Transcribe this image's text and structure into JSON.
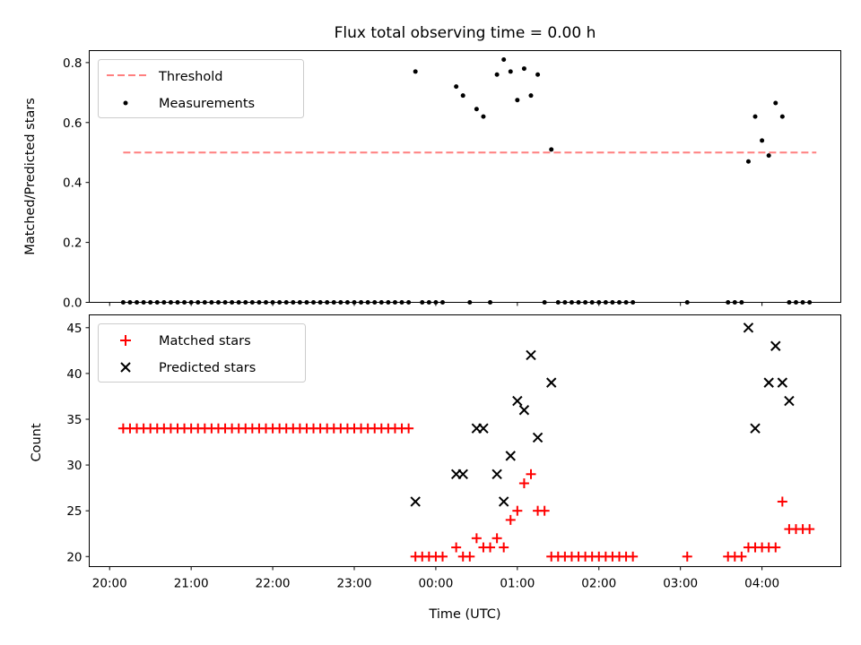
{
  "chart_data": [
    {
      "type": "scatter",
      "title": "Flux total observing time = 0.00 h",
      "xlabel": "",
      "ylabel": "Matched/Predicted stars",
      "ylim": [
        0,
        0.84
      ],
      "yticks": [
        "0.0",
        "0.2",
        "0.4",
        "0.6",
        "0.8"
      ],
      "ytick_values": [
        0,
        0.2,
        0.4,
        0.6,
        0.8
      ],
      "legend": {
        "placement": "upper left",
        "entries": [
          "Threshold",
          "Measurements"
        ]
      },
      "colors": {
        "threshold": "#ff7f7f",
        "measurements": "#000000"
      },
      "threshold": {
        "name": "Threshold",
        "value": 0.5,
        "x_start": "20:10",
        "x_end": "04:40"
      },
      "series": [
        {
          "name": "Measurements",
          "x": [
            "20:10",
            "20:15",
            "20:20",
            "20:25",
            "20:30",
            "20:35",
            "20:40",
            "20:45",
            "20:50",
            "20:55",
            "21:00",
            "21:05",
            "21:10",
            "21:15",
            "21:20",
            "21:25",
            "21:30",
            "21:35",
            "21:40",
            "21:45",
            "21:50",
            "21:55",
            "22:00",
            "22:05",
            "22:10",
            "22:15",
            "22:20",
            "22:25",
            "22:30",
            "22:35",
            "22:40",
            "22:45",
            "22:50",
            "22:55",
            "23:00",
            "23:05",
            "23:10",
            "23:15",
            "23:20",
            "23:25",
            "23:30",
            "23:35",
            "23:40",
            "23:45",
            "23:50",
            "23:55",
            "00:00",
            "00:05",
            "00:15",
            "00:20",
            "00:25",
            "00:30",
            "00:35",
            "00:40",
            "00:45",
            "00:50",
            "00:55",
            "01:00",
            "01:05",
            "01:10",
            "01:15",
            "01:20",
            "01:25",
            "01:30",
            "01:35",
            "01:40",
            "01:45",
            "01:50",
            "01:55",
            "02:00",
            "02:05",
            "02:10",
            "02:15",
            "02:20",
            "02:25",
            "03:05",
            "03:35",
            "03:40",
            "03:45",
            "03:50",
            "03:55",
            "04:00",
            "04:05",
            "04:10",
            "04:15",
            "04:20",
            "04:25",
            "04:30",
            "04:35"
          ],
          "y": [
            0,
            0,
            0,
            0,
            0,
            0,
            0,
            0,
            0,
            0,
            0,
            0,
            0,
            0,
            0,
            0,
            0,
            0,
            0,
            0,
            0,
            0,
            0,
            0,
            0,
            0,
            0,
            0,
            0,
            0,
            0,
            0,
            0,
            0,
            0,
            0,
            0,
            0,
            0,
            0,
            0,
            0,
            0,
            0.77,
            0,
            0,
            0,
            0,
            0.72,
            0.69,
            0,
            0.645,
            0.62,
            0,
            0.76,
            0.81,
            0.77,
            0.675,
            0.78,
            0.69,
            0.76,
            0,
            0.51,
            0,
            0,
            0,
            0,
            0,
            0,
            0,
            0,
            0,
            0,
            0,
            0,
            0,
            0,
            0,
            0,
            0.47,
            0.62,
            0.54,
            0.49,
            0.665,
            0.62,
            0,
            0,
            0,
            0
          ]
        }
      ]
    },
    {
      "type": "scatter",
      "title": "",
      "xlabel": "Time (UTC)",
      "ylabel": "Count",
      "ylim": [
        18.9,
        46.4
      ],
      "yticks": [
        "20",
        "25",
        "30",
        "35",
        "40",
        "45"
      ],
      "ytick_values": [
        20,
        25,
        30,
        35,
        40,
        45
      ],
      "xlim": [
        "19:45",
        "04:58"
      ],
      "xticks": [
        "20:00",
        "21:00",
        "22:00",
        "23:00",
        "00:00",
        "01:00",
        "02:00",
        "03:00",
        "04:00"
      ],
      "legend": {
        "placement": "upper left",
        "entries": [
          "Matched stars",
          "Predicted stars"
        ]
      },
      "colors": {
        "matched": "#ff0000",
        "predicted": "#000000"
      },
      "series": [
        {
          "name": "Matched stars",
          "marker": "plus",
          "x": [
            "20:10",
            "20:15",
            "20:20",
            "20:25",
            "20:30",
            "20:35",
            "20:40",
            "20:45",
            "20:50",
            "20:55",
            "21:00",
            "21:05",
            "21:10",
            "21:15",
            "21:20",
            "21:25",
            "21:30",
            "21:35",
            "21:40",
            "21:45",
            "21:50",
            "21:55",
            "22:00",
            "22:05",
            "22:10",
            "22:15",
            "22:20",
            "22:25",
            "22:30",
            "22:35",
            "22:40",
            "22:45",
            "22:50",
            "22:55",
            "23:00",
            "23:05",
            "23:10",
            "23:15",
            "23:20",
            "23:25",
            "23:30",
            "23:35",
            "23:40",
            "23:45",
            "23:50",
            "23:55",
            "00:00",
            "00:05",
            "00:15",
            "00:20",
            "00:25",
            "00:30",
            "00:35",
            "00:40",
            "00:45",
            "00:50",
            "00:55",
            "01:00",
            "01:05",
            "01:10",
            "01:15",
            "01:20",
            "01:25",
            "01:30",
            "01:35",
            "01:40",
            "01:45",
            "01:50",
            "01:55",
            "02:00",
            "02:05",
            "02:10",
            "02:15",
            "02:20",
            "02:25",
            "03:05",
            "03:35",
            "03:40",
            "03:45",
            "03:50",
            "03:55",
            "04:00",
            "04:05",
            "04:10",
            "04:15",
            "04:20",
            "04:25",
            "04:30",
            "04:35"
          ],
          "y": [
            34,
            34,
            34,
            34,
            34,
            34,
            34,
            34,
            34,
            34,
            34,
            34,
            34,
            34,
            34,
            34,
            34,
            34,
            34,
            34,
            34,
            34,
            34,
            34,
            34,
            34,
            34,
            34,
            34,
            34,
            34,
            34,
            34,
            34,
            34,
            34,
            34,
            34,
            34,
            34,
            34,
            34,
            34,
            20,
            20,
            20,
            20,
            20,
            21,
            20,
            20,
            22,
            21,
            21,
            22,
            21,
            24,
            25,
            28,
            29,
            25,
            25,
            20,
            20,
            20,
            20,
            20,
            20,
            20,
            20,
            20,
            20,
            20,
            20,
            20,
            20,
            20,
            20,
            20,
            21,
            21,
            21,
            21,
            21,
            26,
            23,
            23,
            23,
            23
          ]
        },
        {
          "name": "Predicted stars",
          "marker": "x",
          "x": [
            "23:45",
            "00:15",
            "00:20",
            "00:30",
            "00:35",
            "00:45",
            "00:50",
            "00:55",
            "01:00",
            "01:05",
            "01:10",
            "01:15",
            "01:25",
            "03:50",
            "03:55",
            "04:05",
            "04:10",
            "04:15",
            "04:20"
          ],
          "y": [
            26,
            29,
            29,
            34,
            34,
            29,
            26,
            31,
            37,
            36,
            42,
            33,
            39,
            45,
            34,
            39,
            43,
            39,
            37
          ]
        }
      ]
    }
  ]
}
